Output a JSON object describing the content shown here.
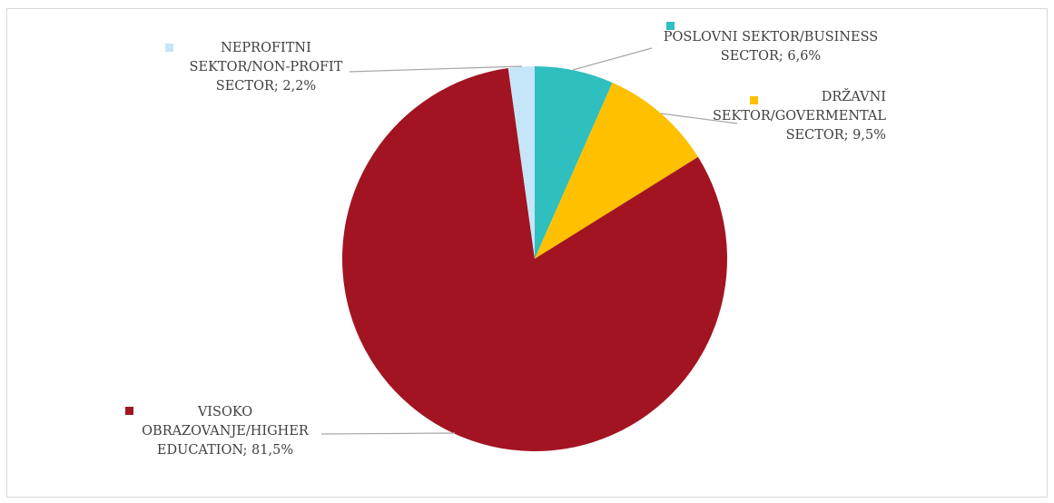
{
  "chart_data": {
    "type": "pie",
    "start_angle_deg": 0,
    "direction": "clockwise",
    "slices": [
      {
        "name": "POSLOVNI SEKTOR/BUSINESS SECTOR",
        "value": 6.6,
        "label_lines": [
          "POSLOVNI SEKTOR/BUSINESS",
          "SECTOR; 6,6%"
        ],
        "color": "#2EBFBE"
      },
      {
        "name": "DRŽAVNI SEKTOR/GOVERMENTAL SECTOR",
        "value": 9.5,
        "label_lines": [
          "DRŽAVNI",
          "SEKTOR/GOVERMENTAL",
          "SECTOR; 9,5%"
        ],
        "color": "#FFC000"
      },
      {
        "name": "VISOKO OBRAZOVANJE/HIGHER EDUCATION",
        "value": 81.5,
        "label_lines": [
          "VISOKO",
          "OBRAZOVANJE/HIGHER",
          "EDUCATION; 81,5%"
        ],
        "color": "#A21422"
      },
      {
        "name": "NEPROFITNI SEKTOR/NON-PROFIT SECTOR",
        "value": 2.2,
        "label_lines": [
          "NEPROFITNI",
          "SEKTOR/NON-PROFIT",
          "SECTOR; 2,2%"
        ],
        "color": "#C5E6F8"
      }
    ],
    "legend": "none",
    "data_labels": "outside-with-leader-lines"
  }
}
